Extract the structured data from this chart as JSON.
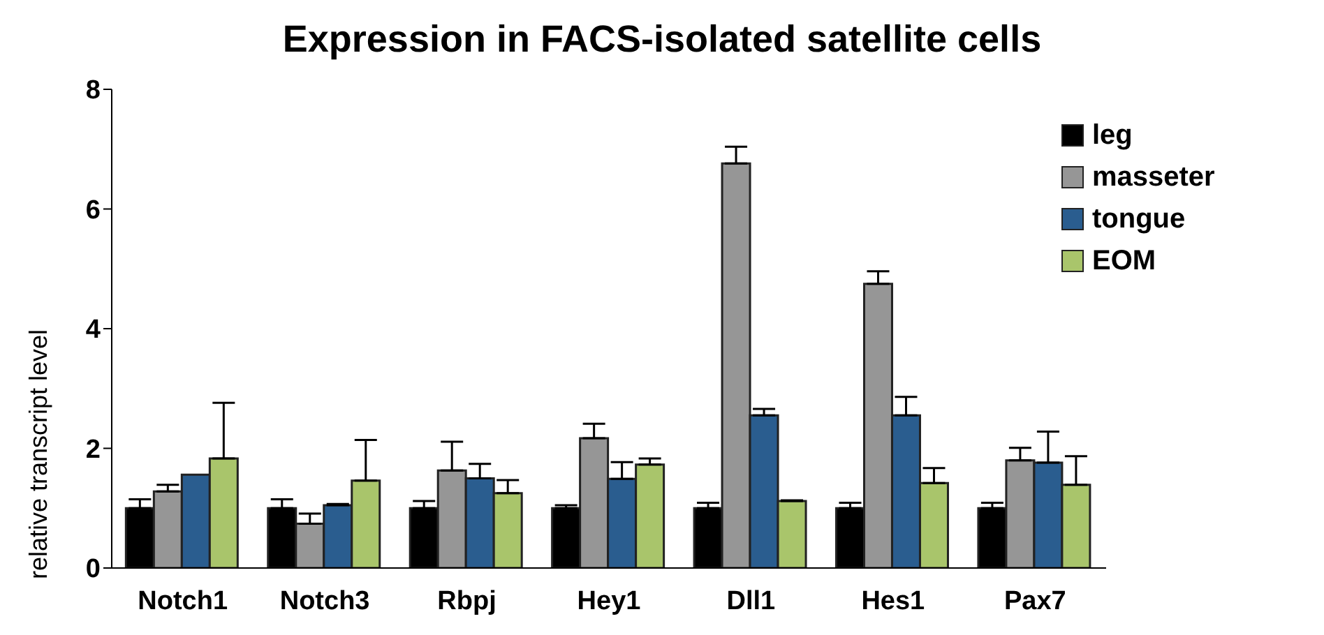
{
  "chart_data": {
    "type": "bar",
    "title": "Expression in FACS-isolated satellite cells",
    "ylabel": "relative transcript level",
    "categories": [
      "Notch1",
      "Notch3",
      "Rbpj",
      "Hey1",
      "Dll1",
      "Hes1",
      "Pax7"
    ],
    "series": [
      {
        "name": "leg",
        "color": "#000000",
        "values": [
          1.0,
          1.0,
          1.0,
          1.0,
          1.0,
          1.0,
          1.0
        ],
        "errors": [
          [
            1.0,
            1.15
          ],
          [
            1.0,
            1.15
          ],
          [
            1.0,
            1.12
          ],
          [
            1.0,
            1.05
          ],
          [
            1.0,
            1.09
          ],
          [
            1.0,
            1.09
          ],
          [
            1.0,
            1.09
          ]
        ]
      },
      {
        "name": "masseter",
        "color": "#969696",
        "values": [
          1.28,
          0.74,
          1.63,
          2.17,
          6.76,
          4.75,
          1.8
        ],
        "errors": [
          [
            1.28,
            1.39
          ],
          [
            0.74,
            0.91
          ],
          [
            1.63,
            2.11
          ],
          [
            2.17,
            2.41
          ],
          [
            6.76,
            7.04
          ],
          [
            4.75,
            4.96
          ],
          [
            1.8,
            2.01
          ]
        ]
      },
      {
        "name": "tongue",
        "color": "#2a5d8f",
        "values": [
          1.56,
          1.05,
          1.5,
          1.49,
          2.55,
          2.55,
          1.76
        ],
        "errors": [
          null,
          [
            1.05,
            1.07
          ],
          [
            1.5,
            1.74
          ],
          [
            1.49,
            1.77
          ],
          [
            2.55,
            2.66
          ],
          [
            2.55,
            2.86
          ],
          [
            1.76,
            2.28
          ]
        ]
      },
      {
        "name": "EOM",
        "color": "#a9c56b",
        "values": [
          1.83,
          1.46,
          1.25,
          1.73,
          1.12,
          1.42,
          1.39
        ],
        "errors": [
          [
            1.83,
            2.76
          ],
          [
            1.46,
            2.14
          ],
          [
            1.25,
            1.47
          ],
          [
            1.73,
            1.83
          ],
          [
            1.12,
            1.13
          ],
          [
            1.42,
            1.67
          ],
          [
            1.39,
            1.87
          ]
        ]
      }
    ],
    "ylim": [
      0,
      8
    ],
    "yticks": [
      0,
      2,
      4,
      6,
      8
    ],
    "grid": false,
    "legend": "top right"
  }
}
